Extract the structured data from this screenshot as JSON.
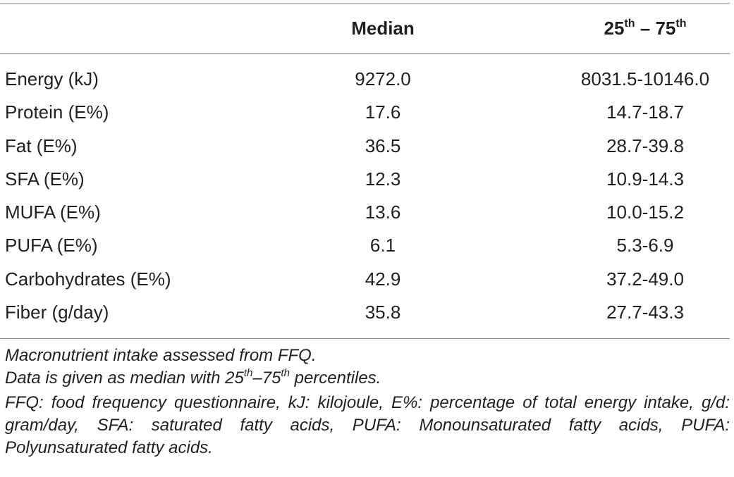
{
  "table": {
    "headers": {
      "median": "Median",
      "range_low": "25",
      "range_low_sup": "th",
      "range_sep": " – ",
      "range_high": "75",
      "range_high_sup": "th"
    },
    "rows": [
      {
        "label": "Energy (kJ)",
        "median": "9272.0",
        "range": "8031.5-10146.0"
      },
      {
        "label": "Protein (E%)",
        "median": "17.6",
        "range": "14.7-18.7"
      },
      {
        "label": "Fat (E%)",
        "median": "36.5",
        "range": "28.7-39.8"
      },
      {
        "label": "SFA (E%)",
        "median": "12.3",
        "range": "10.9-14.3"
      },
      {
        "label": "MUFA (E%)",
        "median": "13.6",
        "range": "10.0-15.2"
      },
      {
        "label": "PUFA (E%)",
        "median": "6.1",
        "range": "5.3-6.9"
      },
      {
        "label": "Carbohydrates (E%)",
        "median": "42.9",
        "range": "37.2-49.0"
      },
      {
        "label": "Fiber (g/day)",
        "median": "35.8",
        "range": "27.7-43.3"
      }
    ]
  },
  "footnotes": {
    "line1": "Macronutrient intake assessed from FFQ.",
    "line2_pre": "Data is given as median with 25",
    "line2_sup1": "th",
    "line2_mid": "–75",
    "line2_sup2": "th",
    "line2_post": " percentiles.",
    "line3": "FFQ: food frequency questionnaire, kJ: kilojoule, E%: percentage of total energy intake, g/d: gram/day, SFA: saturated fatty acids, PUFA: Monounsaturated fatty acids, PUFA: Polyunsaturated fatty acids."
  }
}
